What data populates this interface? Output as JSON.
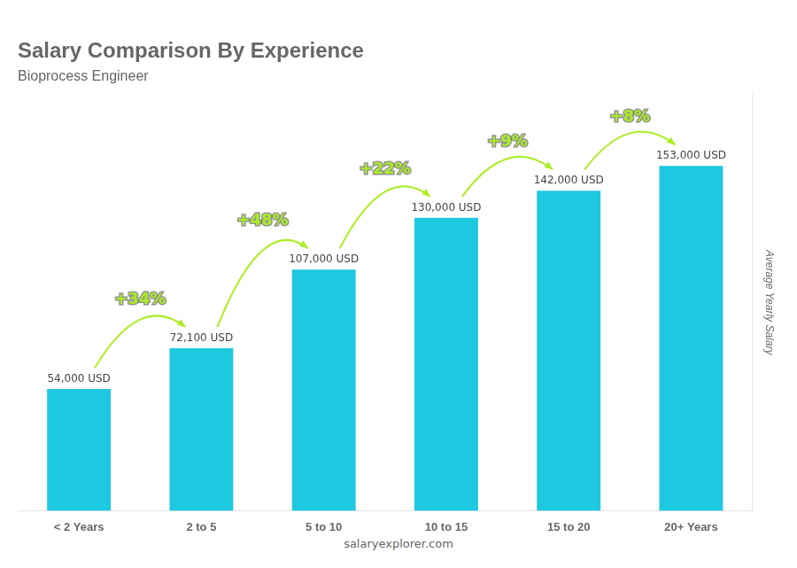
{
  "chart_data": {
    "type": "bar",
    "title": "Salary Comparison By Experience",
    "subtitle": "Bioprocess Engineer",
    "ylabel": "Average Yearly Salary",
    "source": "salaryexplorer.com",
    "categories": [
      "< 2 Years",
      "2 to 5",
      "5 to 10",
      "10 to 15",
      "15 to 20",
      "20+ Years"
    ],
    "values": [
      54000,
      72100,
      107000,
      130000,
      142000,
      153000
    ],
    "value_labels": [
      "54,000 USD",
      "72,100 USD",
      "107,000 USD",
      "130,000 USD",
      "142,000 USD",
      "153,000 USD"
    ],
    "data_labels": true,
    "color": "#1ec8e0",
    "annotations": [
      {
        "text": "+34%",
        "color": "#aaee22"
      },
      {
        "text": "+48%",
        "color": "#aaee22"
      },
      {
        "text": "+22%",
        "color": "#aaee22"
      },
      {
        "text": "+9%",
        "color": "#aaee22"
      },
      {
        "text": "+8%",
        "color": "#aaee22"
      }
    ],
    "ylim": [
      0,
      185000
    ],
    "tick_labels": "x",
    "grid": false
  }
}
